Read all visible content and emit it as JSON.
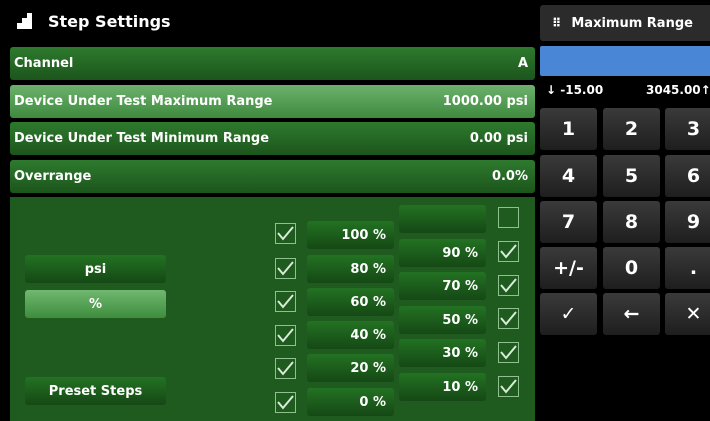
{
  "header": {
    "title": "Step Settings"
  },
  "settings": [
    {
      "label": "Channel",
      "value": "A",
      "selected": false
    },
    {
      "label": "Device Under Test Maximum Range",
      "value": "1000.00 psi",
      "selected": true
    },
    {
      "label": "Device Under Test Minimum Range",
      "value": "0.00 psi",
      "selected": false
    },
    {
      "label": "Overrange",
      "value": "0.0%",
      "selected": false
    }
  ],
  "units": [
    {
      "label": "psi",
      "selected": false
    },
    {
      "label": "%",
      "selected": true
    }
  ],
  "preset_button": "Preset Steps",
  "steps_left": [
    {
      "label": "100 %",
      "checked": true
    },
    {
      "label": "80 %",
      "checked": true
    },
    {
      "label": "60 %",
      "checked": true
    },
    {
      "label": "40 %",
      "checked": true
    },
    {
      "label": "20 %",
      "checked": true
    },
    {
      "label": "0 %",
      "checked": true
    }
  ],
  "steps_right": [
    {
      "label": "",
      "checked": false
    },
    {
      "label": "90 %",
      "checked": true
    },
    {
      "label": "70 %",
      "checked": true
    },
    {
      "label": "50 %",
      "checked": true
    },
    {
      "label": "30 %",
      "checked": true
    },
    {
      "label": "10 %",
      "checked": true
    }
  ],
  "keypad": {
    "title": "Maximum Range",
    "min": "↓ -15.00",
    "max": "3045.00↑",
    "keys": [
      "1",
      "2",
      "3",
      "4",
      "5",
      "6",
      "7",
      "8",
      "9",
      "+/-",
      "0",
      ".",
      "✓",
      "←",
      "✕"
    ]
  }
}
